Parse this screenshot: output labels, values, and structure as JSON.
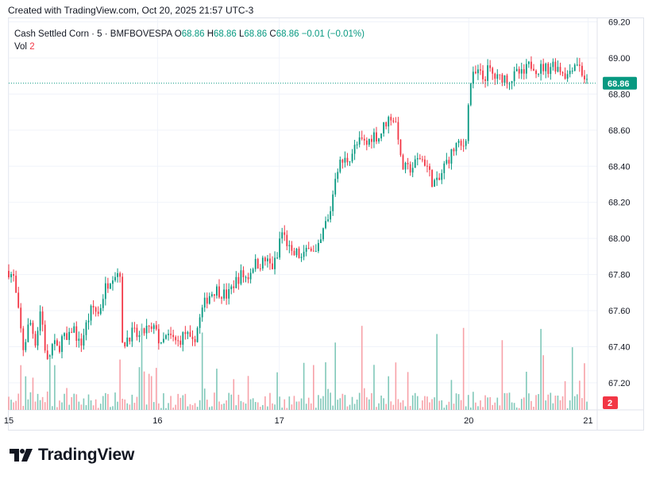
{
  "caption": "Created with TradingView.com, Oct 20, 2025 21:57 UTC-3",
  "legend": {
    "symbol": "Cash Settled Corn · 5 · BMFBOVESPA",
    "o_label": "O",
    "o_value": "68.86",
    "h_label": "H",
    "h_value": "68.86",
    "l_label": "L",
    "l_value": "68.86",
    "c_label": "C",
    "c_value": "68.86",
    "change": "−0.01 (−0.01%)",
    "vol_label": "Vol",
    "vol_value": "2"
  },
  "brand": {
    "name": "TradingView",
    "icon": "tradingview-logo-icon"
  },
  "colors": {
    "up": "#089981",
    "down": "#f23645",
    "vol_up": "#80c8b9",
    "vol_down": "#f7a1a8",
    "grid": "#f0f3fa"
  },
  "chart_data": {
    "type": "candlestick",
    "y_ticks": [
      "69.20",
      "69.00",
      "68.80",
      "68.60",
      "68.40",
      "68.20",
      "68.00",
      "67.80",
      "67.60",
      "67.40",
      "67.20"
    ],
    "x_ticks": [
      "15",
      "16",
      "17",
      "20",
      "21"
    ],
    "ylim": [
      67.05,
      69.22
    ],
    "last_price": 68.86,
    "last_price_label": "68.86",
    "last_volume": 2,
    "last_volume_label": "2",
    "grid": true,
    "close_path": [
      [
        0,
        67.82
      ],
      [
        0.4,
        67.78
      ],
      [
        1.2,
        67.38
      ],
      [
        1.7,
        67.55
      ],
      [
        2.2,
        67.42
      ],
      [
        2.6,
        67.62
      ],
      [
        3.1,
        67.3
      ],
      [
        3.6,
        67.42
      ],
      [
        4.0,
        67.38
      ],
      [
        4.4,
        67.46
      ],
      [
        4.8,
        67.42
      ],
      [
        5.2,
        67.52
      ],
      [
        5.8,
        67.4
      ],
      [
        6.3,
        67.52
      ],
      [
        6.8,
        67.62
      ],
      [
        7.3,
        67.58
      ],
      [
        7.8,
        67.72
      ],
      [
        8.4,
        67.8
      ],
      [
        9.1,
        67.82
      ],
      [
        9.15,
        67.38
      ],
      [
        9.6,
        67.45
      ],
      [
        10.1,
        67.48
      ],
      [
        10.6,
        67.45
      ],
      [
        11.2,
        67.5
      ],
      [
        11.7,
        67.48
      ],
      [
        12.0,
        67.52
      ],
      [
        12.3,
        67.38
      ],
      [
        12.7,
        67.45
      ],
      [
        13.2,
        67.45
      ],
      [
        13.7,
        67.42
      ],
      [
        14.4,
        67.48
      ],
      [
        14.9,
        67.4
      ],
      [
        15.4,
        67.52
      ],
      [
        15.8,
        67.62
      ],
      [
        16.2,
        67.68
      ],
      [
        16.8,
        67.72
      ],
      [
        17.3,
        67.7
      ],
      [
        17.8,
        67.68
      ],
      [
        18.3,
        67.75
      ],
      [
        18.9,
        67.8
      ],
      [
        19.4,
        67.78
      ],
      [
        19.9,
        67.86
      ],
      [
        20.4,
        67.86
      ],
      [
        20.9,
        67.88
      ],
      [
        21.4,
        67.84
      ],
      [
        21.9,
        67.9
      ],
      [
        22.1,
        68.05
      ],
      [
        22.6,
        67.98
      ],
      [
        23.0,
        67.9
      ],
      [
        23.4,
        67.92
      ],
      [
        23.9,
        67.88
      ],
      [
        24.4,
        67.98
      ],
      [
        24.9,
        67.9
      ],
      [
        25.3,
        67.96
      ],
      [
        25.7,
        68.08
      ],
      [
        26.0,
        68.1
      ],
      [
        26.3,
        68.22
      ],
      [
        26.6,
        68.38
      ],
      [
        27.0,
        68.42
      ],
      [
        27.6,
        68.44
      ],
      [
        28.1,
        68.5
      ],
      [
        28.6,
        68.54
      ],
      [
        29.1,
        68.52
      ],
      [
        29.6,
        68.58
      ],
      [
        30.1,
        68.56
      ],
      [
        30.6,
        68.64
      ],
      [
        31.1,
        68.68
      ],
      [
        31.6,
        68.62
      ],
      [
        31.9,
        68.4
      ],
      [
        32.4,
        68.38
      ],
      [
        32.9,
        68.4
      ],
      [
        33.4,
        68.45
      ],
      [
        33.9,
        68.42
      ],
      [
        34.4,
        68.32
      ],
      [
        34.9,
        68.3
      ],
      [
        35.4,
        68.4
      ],
      [
        35.9,
        68.46
      ],
      [
        36.4,
        68.52
      ],
      [
        36.9,
        68.5
      ],
      [
        37.2,
        68.58
      ],
      [
        37.5,
        68.86
      ],
      [
        37.8,
        68.9
      ],
      [
        38.2,
        68.92
      ],
      [
        38.6,
        68.88
      ],
      [
        39.0,
        68.94
      ],
      [
        39.4,
        68.9
      ],
      [
        39.8,
        68.88
      ],
      [
        40.2,
        68.9
      ],
      [
        40.6,
        68.88
      ],
      [
        41.0,
        68.89
      ],
      [
        41.4,
        68.92
      ],
      [
        41.8,
        68.9
      ],
      [
        42.2,
        68.95
      ],
      [
        42.6,
        68.97
      ],
      [
        43.0,
        68.93
      ],
      [
        43.4,
        68.95
      ],
      [
        43.8,
        68.94
      ],
      [
        44.2,
        68.97
      ],
      [
        44.6,
        68.95
      ],
      [
        45.0,
        68.93
      ],
      [
        45.4,
        68.9
      ],
      [
        45.8,
        68.96
      ],
      [
        46.2,
        68.98
      ],
      [
        46.6,
        68.92
      ],
      [
        47.0,
        68.86
      ]
    ],
    "bar_count": 240,
    "session_starts": [
      0,
      12.1,
      22.0,
      37.4,
      47.1
    ]
  }
}
